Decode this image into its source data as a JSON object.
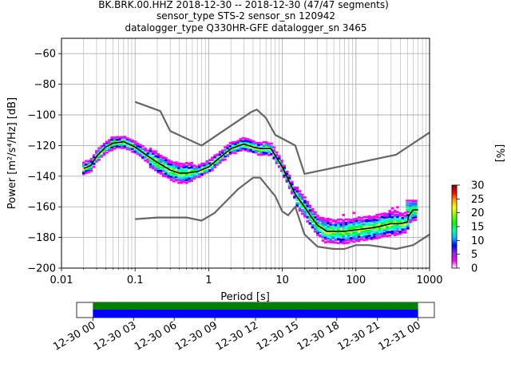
{
  "title_lines": [
    "BK.BRK.00.HHZ   2018-12-30 -- 2018-12-30  (47/47 segments)",
    "sensor_type STS-2 sensor_sn 120942",
    "datalogger_type Q330HR-GFE datalogger_sn 3465"
  ],
  "chart_data": [
    {
      "type": "heatmap",
      "title": "BK.BRK.00.HHZ   2018-12-30 -- 2018-12-30  (47/47 segments)",
      "xlabel": "Period [s]",
      "ylabel": "Power [m²/s⁴/Hz] [dB]",
      "x_scale": "log",
      "xlim": [
        0.01,
        1000
      ],
      "ylim": [
        -200,
        -50
      ],
      "grid": true,
      "x_ticks": [
        {
          "value": 0.01,
          "label": "0.01"
        },
        {
          "value": 0.1,
          "label": "0.1"
        },
        {
          "value": 1,
          "label": "1"
        },
        {
          "value": 10,
          "label": "10"
        },
        {
          "value": 100,
          "label": "100"
        },
        {
          "value": 1000,
          "label": "1000"
        }
      ],
      "y_ticks": [
        {
          "value": -60,
          "label": "−60"
        },
        {
          "value": -80,
          "label": "−80"
        },
        {
          "value": -100,
          "label": "−100"
        },
        {
          "value": -120,
          "label": "−120"
        },
        {
          "value": -140,
          "label": "−140"
        },
        {
          "value": -160,
          "label": "−160"
        },
        {
          "value": -180,
          "label": "−180"
        },
        {
          "value": -200,
          "label": "−200"
        }
      ],
      "series": [
        {
          "style": "black",
          "x": [
            0.02,
            0.025,
            0.03,
            0.04,
            0.05,
            0.07,
            0.1,
            0.15,
            0.2,
            0.3,
            0.4,
            0.5,
            0.7,
            1,
            1.5,
            2,
            3,
            4,
            5,
            7,
            10,
            12,
            15,
            20,
            25,
            30,
            40,
            50,
            70,
            100,
            150,
            200,
            300,
            400,
            500,
            520,
            600,
            700
          ],
          "y": [
            -135,
            -133,
            -127,
            -121,
            -118.5,
            -117.5,
            -121,
            -127,
            -131,
            -136,
            -138,
            -138,
            -137,
            -134,
            -127,
            -122,
            -119,
            -121,
            -122,
            -122,
            -134,
            -142,
            -152,
            -160,
            -167,
            -172,
            -176,
            -176,
            -176,
            -175,
            -174,
            -173,
            -171,
            -171,
            -170,
            -166,
            -162,
            -162
          ]
        },
        {
          "style": "gray",
          "x": [
            0.1,
            0.22,
            0.3,
            0.8,
            3.8,
            4.5,
            6,
            8,
            15,
            20,
            350,
            1000
          ],
          "y": [
            -91.5,
            -97.5,
            -110.5,
            -120,
            -98,
            -96.5,
            -102,
            -113,
            -120,
            -138.5,
            -126,
            -111.5
          ]
        },
        {
          "style": "gray",
          "x": [
            0.1,
            0.2,
            0.5,
            0.8,
            1.2,
            2.5,
            4,
            5,
            8,
            10,
            12,
            15,
            20,
            30,
            50,
            70,
            100,
            150,
            350,
            600,
            1000
          ],
          "y": [
            -168,
            -167,
            -167,
            -169,
            -164,
            -148.5,
            -141,
            -141,
            -153,
            -163,
            -165.5,
            -160,
            -178,
            -186,
            -187.5,
            -187.5,
            -185,
            -185,
            -187.5,
            -185,
            -178
          ]
        }
      ]
    },
    {
      "type": "heatmap",
      "title": "",
      "colorbar_label": "[%]",
      "ylim": [
        0,
        30
      ],
      "ticks": [
        {
          "value": 0,
          "label": "0"
        },
        {
          "value": 5,
          "label": "5"
        },
        {
          "value": 10,
          "label": "10"
        },
        {
          "value": 15,
          "label": "15"
        },
        {
          "value": 20,
          "label": "20"
        },
        {
          "value": 25,
          "label": "25"
        },
        {
          "value": 30,
          "label": "30"
        }
      ]
    },
    {
      "type": "bar",
      "title": "",
      "xlabel": "",
      "x_ticks": [
        "12-30 00",
        "12-30 03",
        "12-30 06",
        "12-30 09",
        "12-30 12",
        "12-30 15",
        "12-30 18",
        "12-30 21",
        "12-31 00"
      ],
      "xlim_hours": [
        -1.2,
        25.2
      ],
      "coverage_hours": [
        0,
        24
      ],
      "segments": 47
    }
  ],
  "colors": {
    "mean_line": "#000000",
    "model_lines": "#666666",
    "grid": "#b0b0b0",
    "coverage_green": "#008000",
    "coverage_blue": "#0000ff",
    "colormap": [
      "#ffffff",
      "#ff00ff",
      "#8a2be2",
      "#0000ff",
      "#00bfff",
      "#00ffaa",
      "#00ff00",
      "#7fff00",
      "#ffff00",
      "#ffa500",
      "#ff0000",
      "#8b0000"
    ]
  }
}
